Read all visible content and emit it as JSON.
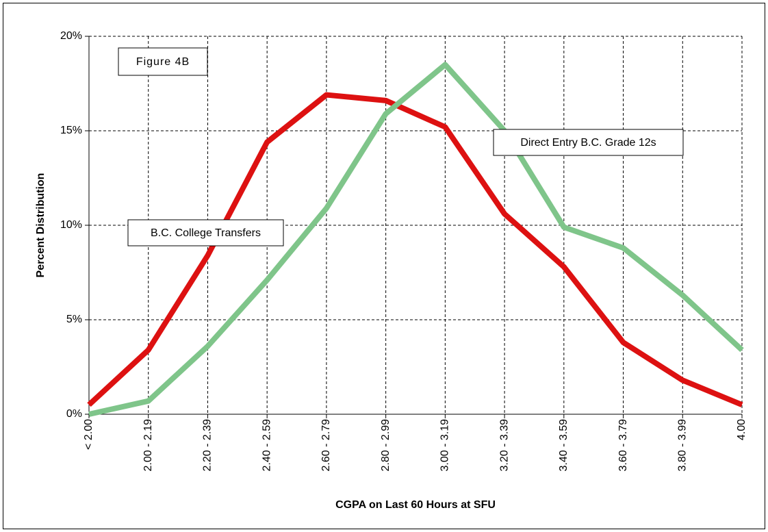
{
  "chart_data": {
    "type": "line",
    "title": "Figure 4B",
    "x_label": "CGPA on Last 60 Hours at SFU",
    "y_label": "Percent Distribution",
    "categories": [
      "< 2.00",
      "2.00 - 2.19",
      "2.20 - 2.39",
      "2.40 - 2.59",
      "2.60 - 2.79",
      "2.80 - 2.99",
      "3.00 - 3.19",
      "3.20 - 3.39",
      "3.40 - 3.59",
      "3.60 - 3.79",
      "3.80 - 3.99",
      "4.00"
    ],
    "series": [
      {
        "name": "B.C. College Transfers",
        "color": "#dd1111",
        "values": [
          0.5,
          3.4,
          8.4,
          14.4,
          16.9,
          16.6,
          15.2,
          10.6,
          7.8,
          3.8,
          1.8,
          0.5
        ]
      },
      {
        "name": "Direct Entry B.C. Grade 12s",
        "color": "#7fc58a",
        "values": [
          0,
          0.7,
          3.6,
          7.1,
          10.9,
          15.9,
          18.5,
          15.0,
          9.9,
          8.8,
          6.3,
          3.4
        ]
      }
    ],
    "ylim": [
      0,
      20
    ],
    "yticks": [
      {
        "value": 0,
        "label": "0%"
      },
      {
        "value": 5,
        "label": "5%"
      },
      {
        "value": 10,
        "label": "10%"
      },
      {
        "value": 15,
        "label": "15%"
      },
      {
        "value": 20,
        "label": "20%"
      }
    ],
    "grid": true
  }
}
